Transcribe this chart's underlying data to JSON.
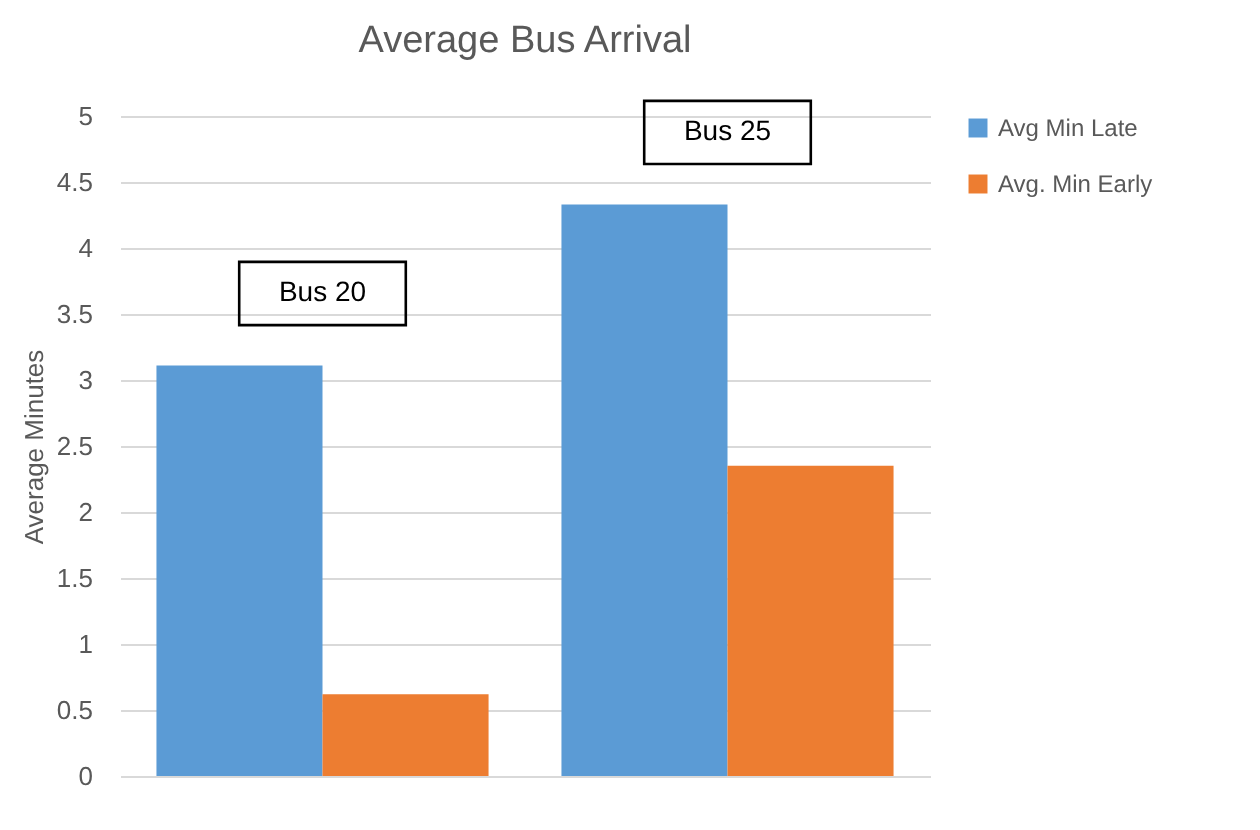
{
  "chart_data": {
    "type": "bar",
    "title": "Average Bus Arrival",
    "ylabel": "Average Minutes",
    "categories": [
      null,
      null
    ],
    "series": [
      {
        "name": "Avg Min Late",
        "color": "#5b9bd5",
        "values": [
          3.11,
          4.33
        ]
      },
      {
        "name": "Avg. Min Early",
        "color": "#ed7d31",
        "values": [
          0.62,
          2.35
        ]
      }
    ],
    "annotations": [
      "Bus 20",
      "Bus 25"
    ],
    "ylim": [
      0,
      5
    ],
    "yticks": [
      0,
      0.5,
      1,
      1.5,
      2,
      2.5,
      3,
      3.5,
      4,
      4.5,
      5
    ],
    "grid": "y",
    "legend": "right"
  }
}
